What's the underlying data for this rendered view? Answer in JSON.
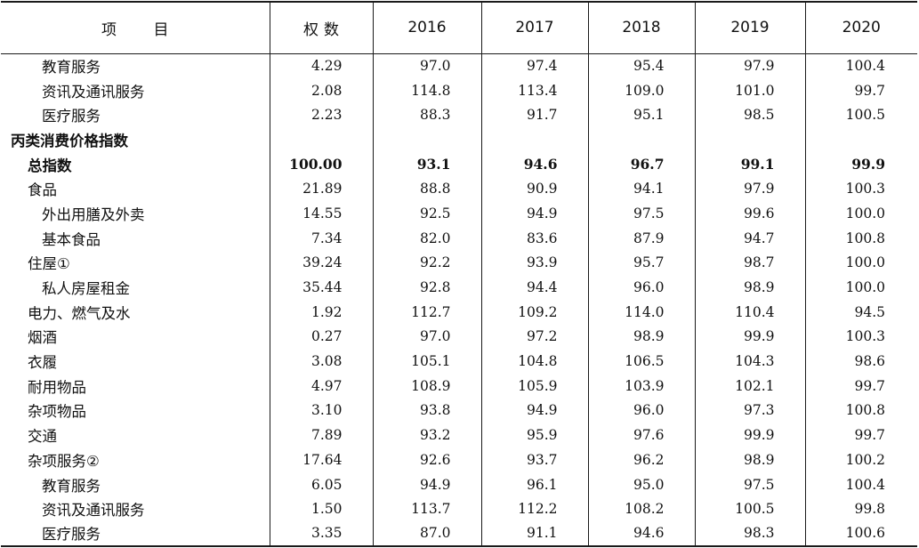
{
  "table": {
    "headers": {
      "item": "项 目",
      "weight": "权数",
      "y2016": "2016",
      "y2017": "2017",
      "y2018": "2018",
      "y2019": "2019",
      "y2020": "2020"
    },
    "rows": [
      {
        "item": "教育服务",
        "weight": "4.29",
        "y2016": "97.0",
        "y2017": "97.4",
        "y2018": "95.4",
        "y2019": "97.9",
        "y2020": "100.4",
        "level": 2,
        "bold": false
      },
      {
        "item": "资讯及通讯服务",
        "weight": "2.08",
        "y2016": "114.8",
        "y2017": "113.4",
        "y2018": "109.0",
        "y2019": "101.0",
        "y2020": "99.7",
        "level": 2,
        "bold": false
      },
      {
        "item": "医疗服务",
        "weight": "2.23",
        "y2016": "88.3",
        "y2017": "91.7",
        "y2018": "95.1",
        "y2019": "98.5",
        "y2020": "100.5",
        "level": 2,
        "bold": false
      },
      {
        "item": "丙类消费价格指数",
        "weight": "",
        "y2016": "",
        "y2017": "",
        "y2018": "",
        "y2019": "",
        "y2020": "",
        "level": 0,
        "bold": true
      },
      {
        "item": "总指数",
        "weight": "100.00",
        "y2016": "93.1",
        "y2017": "94.6",
        "y2018": "96.7",
        "y2019": "99.1",
        "y2020": "99.9",
        "level": 1,
        "bold": true
      },
      {
        "item": "食品",
        "weight": "21.89",
        "y2016": "88.8",
        "y2017": "90.9",
        "y2018": "94.1",
        "y2019": "97.9",
        "y2020": "100.3",
        "level": 1,
        "bold": false
      },
      {
        "item": "外出用膳及外卖",
        "weight": "14.55",
        "y2016": "92.5",
        "y2017": "94.9",
        "y2018": "97.5",
        "y2019": "99.6",
        "y2020": "100.0",
        "level": 2,
        "bold": false
      },
      {
        "item": "基本食品",
        "weight": "7.34",
        "y2016": "82.0",
        "y2017": "83.6",
        "y2018": "87.9",
        "y2019": "94.7",
        "y2020": "100.8",
        "level": 2,
        "bold": false
      },
      {
        "item": "住屋①",
        "weight": "39.24",
        "y2016": "92.2",
        "y2017": "93.9",
        "y2018": "95.7",
        "y2019": "98.7",
        "y2020": "100.0",
        "level": 1,
        "bold": false
      },
      {
        "item": "私人房屋租金",
        "weight": "35.44",
        "y2016": "92.8",
        "y2017": "94.4",
        "y2018": "96.0",
        "y2019": "98.9",
        "y2020": "100.0",
        "level": 2,
        "bold": false
      },
      {
        "item": "电力、燃气及水",
        "weight": "1.92",
        "y2016": "112.7",
        "y2017": "109.2",
        "y2018": "114.0",
        "y2019": "110.4",
        "y2020": "94.5",
        "level": 1,
        "bold": false
      },
      {
        "item": "烟酒",
        "weight": "0.27",
        "y2016": "97.0",
        "y2017": "97.2",
        "y2018": "98.9",
        "y2019": "99.9",
        "y2020": "100.3",
        "level": 1,
        "bold": false
      },
      {
        "item": "衣履",
        "weight": "3.08",
        "y2016": "105.1",
        "y2017": "104.8",
        "y2018": "106.5",
        "y2019": "104.3",
        "y2020": "98.6",
        "level": 1,
        "bold": false
      },
      {
        "item": "耐用物品",
        "weight": "4.97",
        "y2016": "108.9",
        "y2017": "105.9",
        "y2018": "103.9",
        "y2019": "102.1",
        "y2020": "99.7",
        "level": 1,
        "bold": false
      },
      {
        "item": "杂项物品",
        "weight": "3.10",
        "y2016": "93.8",
        "y2017": "94.9",
        "y2018": "96.0",
        "y2019": "97.3",
        "y2020": "100.8",
        "level": 1,
        "bold": false
      },
      {
        "item": "交通",
        "weight": "7.89",
        "y2016": "93.2",
        "y2017": "95.9",
        "y2018": "97.6",
        "y2019": "99.9",
        "y2020": "99.7",
        "level": 1,
        "bold": false
      },
      {
        "item": "杂项服务②",
        "weight": "17.64",
        "y2016": "92.6",
        "y2017": "93.7",
        "y2018": "96.2",
        "y2019": "98.9",
        "y2020": "100.2",
        "level": 1,
        "bold": false
      },
      {
        "item": "教育服务",
        "weight": "6.05",
        "y2016": "94.9",
        "y2017": "96.1",
        "y2018": "95.0",
        "y2019": "97.5",
        "y2020": "100.4",
        "level": 2,
        "bold": false
      },
      {
        "item": "资讯及通讯服务",
        "weight": "1.50",
        "y2016": "113.7",
        "y2017": "112.2",
        "y2018": "108.2",
        "y2019": "100.5",
        "y2020": "99.8",
        "level": 2,
        "bold": false
      },
      {
        "item": "医疗服务",
        "weight": "3.35",
        "y2016": "87.0",
        "y2017": "91.1",
        "y2018": "94.6",
        "y2019": "98.3",
        "y2020": "100.6",
        "level": 2,
        "bold": false
      }
    ]
  }
}
